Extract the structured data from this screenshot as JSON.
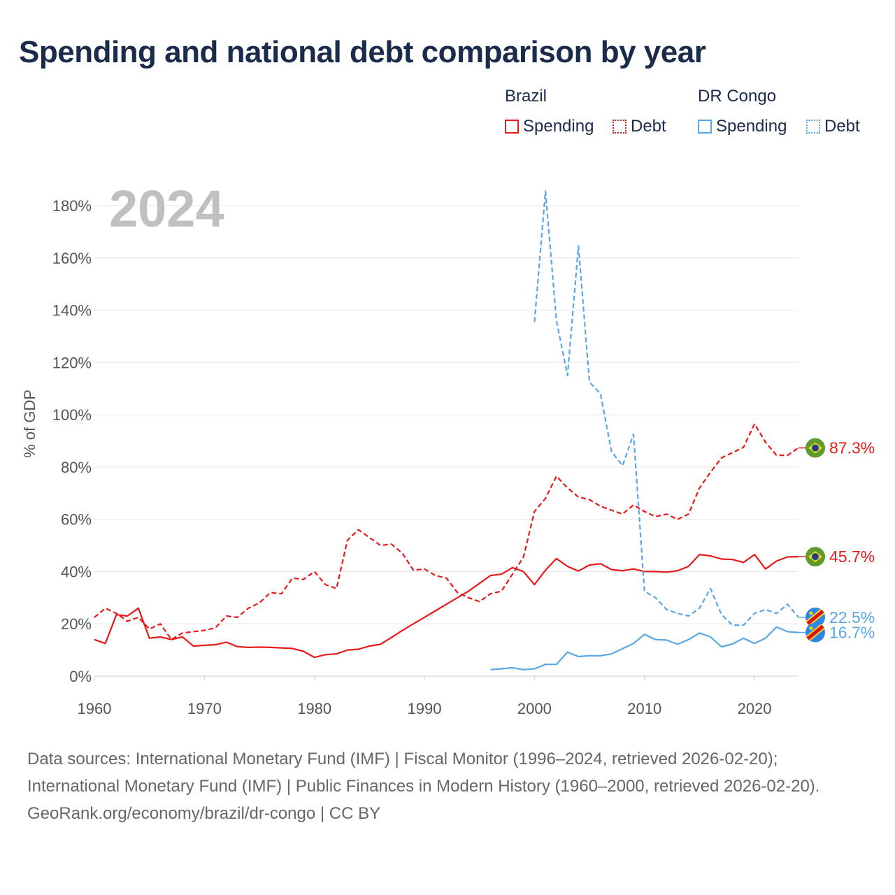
{
  "title": "Spending and national debt comparison by year",
  "legend": {
    "groups": [
      {
        "name": "Brazil",
        "items": [
          "Spending",
          "Debt"
        ]
      },
      {
        "name": "DR Congo",
        "items": [
          "Spending",
          "Debt"
        ]
      }
    ]
  },
  "colors": {
    "brazil": "#e8191b",
    "congo": "#5aa6e6"
  },
  "chart_data": {
    "type": "line",
    "title": "Spending and national debt comparison by year",
    "year_label": "2024",
    "xlabel": "",
    "ylabel": "% of GDP",
    "xlim": [
      1960,
      2024
    ],
    "ylim": [
      0,
      185
    ],
    "x_ticks": [
      1960,
      1970,
      1980,
      1990,
      2000,
      2010,
      2020
    ],
    "x_tick_labels": [
      "1960",
      "1970",
      "1980",
      "1990",
      "2000",
      "2010",
      "2020"
    ],
    "y_ticks": [
      0,
      20,
      40,
      60,
      80,
      100,
      120,
      140,
      160,
      180
    ],
    "y_tick_labels": [
      "0%",
      "20%",
      "40%",
      "60%",
      "80%",
      "100%",
      "120%",
      "140%",
      "160%",
      "180%"
    ],
    "grid": true,
    "legend_position": "top-right",
    "series": [
      {
        "name": "Brazil Debt",
        "country": "Brazil",
        "measure": "Debt",
        "style": "dashed",
        "color": "#e8191b",
        "end_label": "87.3%",
        "points": [
          [
            1960,
            22.5
          ],
          [
            1961,
            26
          ],
          [
            1962,
            24
          ],
          [
            1963,
            21
          ],
          [
            1964,
            22.5
          ],
          [
            1965,
            18
          ],
          [
            1966,
            20
          ],
          [
            1967,
            14
          ],
          [
            1968,
            16.5
          ],
          [
            1969,
            17
          ],
          [
            1970,
            17.5
          ],
          [
            1971,
            18.5
          ],
          [
            1972,
            23
          ],
          [
            1973,
            22.5
          ],
          [
            1974,
            26
          ],
          [
            1975,
            28
          ],
          [
            1976,
            32
          ],
          [
            1977,
            31.5
          ],
          [
            1978,
            37.5
          ],
          [
            1979,
            37
          ],
          [
            1980,
            40
          ],
          [
            1981,
            35
          ],
          [
            1982,
            33.5
          ],
          [
            1983,
            52
          ],
          [
            1984,
            56
          ],
          [
            1985,
            53
          ],
          [
            1986,
            50
          ],
          [
            1987,
            50.5
          ],
          [
            1988,
            47
          ],
          [
            1989,
            40.5
          ],
          [
            1990,
            41
          ],
          [
            1991,
            38.5
          ],
          [
            1992,
            37.5
          ],
          [
            1993,
            32
          ],
          [
            1994,
            30
          ],
          [
            1995,
            28.5
          ],
          [
            1996,
            31.5
          ],
          [
            1997,
            32.5
          ],
          [
            1998,
            39
          ],
          [
            1999,
            45.5
          ],
          [
            2000,
            63
          ],
          [
            2001,
            68
          ],
          [
            2002,
            76.5
          ],
          [
            2003,
            72
          ],
          [
            2004,
            68.5
          ],
          [
            2005,
            67.5
          ],
          [
            2006,
            65
          ],
          [
            2007,
            63.5
          ],
          [
            2008,
            62
          ],
          [
            2009,
            65.5
          ],
          [
            2010,
            63
          ],
          [
            2011,
            61
          ],
          [
            2012,
            62
          ],
          [
            2013,
            60
          ],
          [
            2014,
            62
          ],
          [
            2015,
            72
          ],
          [
            2016,
            78
          ],
          [
            2017,
            83.5
          ],
          [
            2018,
            85.5
          ],
          [
            2019,
            87.5
          ],
          [
            2020,
            96.5
          ],
          [
            2021,
            89.5
          ],
          [
            2022,
            84.5
          ],
          [
            2023,
            84.5
          ],
          [
            2024,
            87.3
          ]
        ]
      },
      {
        "name": "Brazil Spending",
        "country": "Brazil",
        "measure": "Spending",
        "style": "solid",
        "color": "#e8191b",
        "end_label": "45.7%",
        "points": [
          [
            1960,
            14
          ],
          [
            1961,
            12.5
          ],
          [
            1962,
            23.5
          ],
          [
            1963,
            23
          ],
          [
            1964,
            26
          ],
          [
            1965,
            14.5
          ],
          [
            1966,
            15
          ],
          [
            1967,
            14
          ],
          [
            1968,
            15
          ],
          [
            1969,
            11.5
          ],
          [
            1970,
            11.8
          ],
          [
            1971,
            12
          ],
          [
            1972,
            13
          ],
          [
            1973,
            11.3
          ],
          [
            1974,
            11
          ],
          [
            1975,
            11.1
          ],
          [
            1976,
            11
          ],
          [
            1977,
            10.8
          ],
          [
            1978,
            10.6
          ],
          [
            1979,
            9.5
          ],
          [
            1980,
            7.2
          ],
          [
            1981,
            8.2
          ],
          [
            1982,
            8.5
          ],
          [
            1983,
            10
          ],
          [
            1984,
            10.3
          ],
          [
            1985,
            11.5
          ],
          [
            1986,
            12.2
          ],
          [
            1987,
            14.8
          ],
          [
            1988,
            17.5
          ],
          [
            1989,
            20
          ],
          [
            1990,
            22.5
          ],
          [
            1991,
            25
          ],
          [
            1992,
            27.5
          ],
          [
            1993,
            30
          ],
          [
            1994,
            32.5
          ],
          [
            1995,
            35.5
          ],
          [
            1996,
            38.5
          ],
          [
            1997,
            39
          ],
          [
            1998,
            41.5
          ],
          [
            1999,
            40
          ],
          [
            2000,
            35
          ],
          [
            2001,
            40.5
          ],
          [
            2002,
            45
          ],
          [
            2003,
            42
          ],
          [
            2004,
            40.2
          ],
          [
            2005,
            42.5
          ],
          [
            2006,
            43
          ],
          [
            2007,
            40.8
          ],
          [
            2008,
            40.3
          ],
          [
            2009,
            41
          ],
          [
            2010,
            40
          ],
          [
            2011,
            40
          ],
          [
            2012,
            39.8
          ],
          [
            2013,
            40.3
          ],
          [
            2014,
            42
          ],
          [
            2015,
            46.5
          ],
          [
            2016,
            46
          ],
          [
            2017,
            44.8
          ],
          [
            2018,
            44.6
          ],
          [
            2019,
            43.5
          ],
          [
            2020,
            46.5
          ],
          [
            2021,
            41
          ],
          [
            2022,
            44
          ],
          [
            2023,
            45.6
          ],
          [
            2024,
            45.7
          ]
        ]
      },
      {
        "name": "DR Congo Debt",
        "country": "DR Congo",
        "measure": "Debt",
        "style": "dashed",
        "color": "#5aa6e6",
        "end_label": "22.5%",
        "points": [
          [
            2000,
            135.5
          ],
          [
            2001,
            185.5
          ],
          [
            2002,
            136
          ],
          [
            2003,
            115
          ],
          [
            2004,
            164.5
          ],
          [
            2005,
            112.5
          ],
          [
            2006,
            108
          ],
          [
            2007,
            86
          ],
          [
            2008,
            80.5
          ],
          [
            2009,
            92.5
          ],
          [
            2010,
            32.5
          ],
          [
            2011,
            30
          ],
          [
            2012,
            25.5
          ],
          [
            2013,
            24
          ],
          [
            2014,
            23
          ],
          [
            2015,
            26
          ],
          [
            2016,
            33.5
          ],
          [
            2017,
            23.5
          ],
          [
            2018,
            19.5
          ],
          [
            2019,
            19.5
          ],
          [
            2020,
            24
          ],
          [
            2021,
            25.5
          ],
          [
            2022,
            24
          ],
          [
            2023,
            27.5
          ],
          [
            2024,
            22.5
          ]
        ]
      },
      {
        "name": "DR Congo Spending",
        "country": "DR Congo",
        "measure": "Spending",
        "style": "solid",
        "color": "#5aa6e6",
        "end_label": "16.7%",
        "points": [
          [
            1996,
            2.5
          ],
          [
            1997,
            2.8
          ],
          [
            1998,
            3.2
          ],
          [
            1999,
            2.5
          ],
          [
            2000,
            2.8
          ],
          [
            2001,
            4.5
          ],
          [
            2002,
            4.5
          ],
          [
            2003,
            9.2
          ],
          [
            2004,
            7.5
          ],
          [
            2005,
            7.8
          ],
          [
            2006,
            7.8
          ],
          [
            2007,
            8.5
          ],
          [
            2008,
            10.5
          ],
          [
            2009,
            12.5
          ],
          [
            2010,
            16
          ],
          [
            2011,
            14
          ],
          [
            2012,
            13.8
          ],
          [
            2013,
            12.2
          ],
          [
            2014,
            14
          ],
          [
            2015,
            16.5
          ],
          [
            2016,
            15
          ],
          [
            2017,
            11.2
          ],
          [
            2018,
            12.3
          ],
          [
            2019,
            14.5
          ],
          [
            2020,
            12.5
          ],
          [
            2021,
            14.5
          ],
          [
            2022,
            18.8
          ],
          [
            2023,
            17
          ],
          [
            2024,
            16.7
          ]
        ]
      }
    ]
  },
  "footer": {
    "sources": "Data sources: International Monetary Fund (IMF) | Fiscal Monitor (1996–2024, retrieved 2026-02-20); International Monetary Fund (IMF) | Public Finances in Modern History (1960–2000, retrieved 2026-02-20).",
    "credit": "GeoRank.org/economy/brazil/dr-congo | CC BY"
  }
}
